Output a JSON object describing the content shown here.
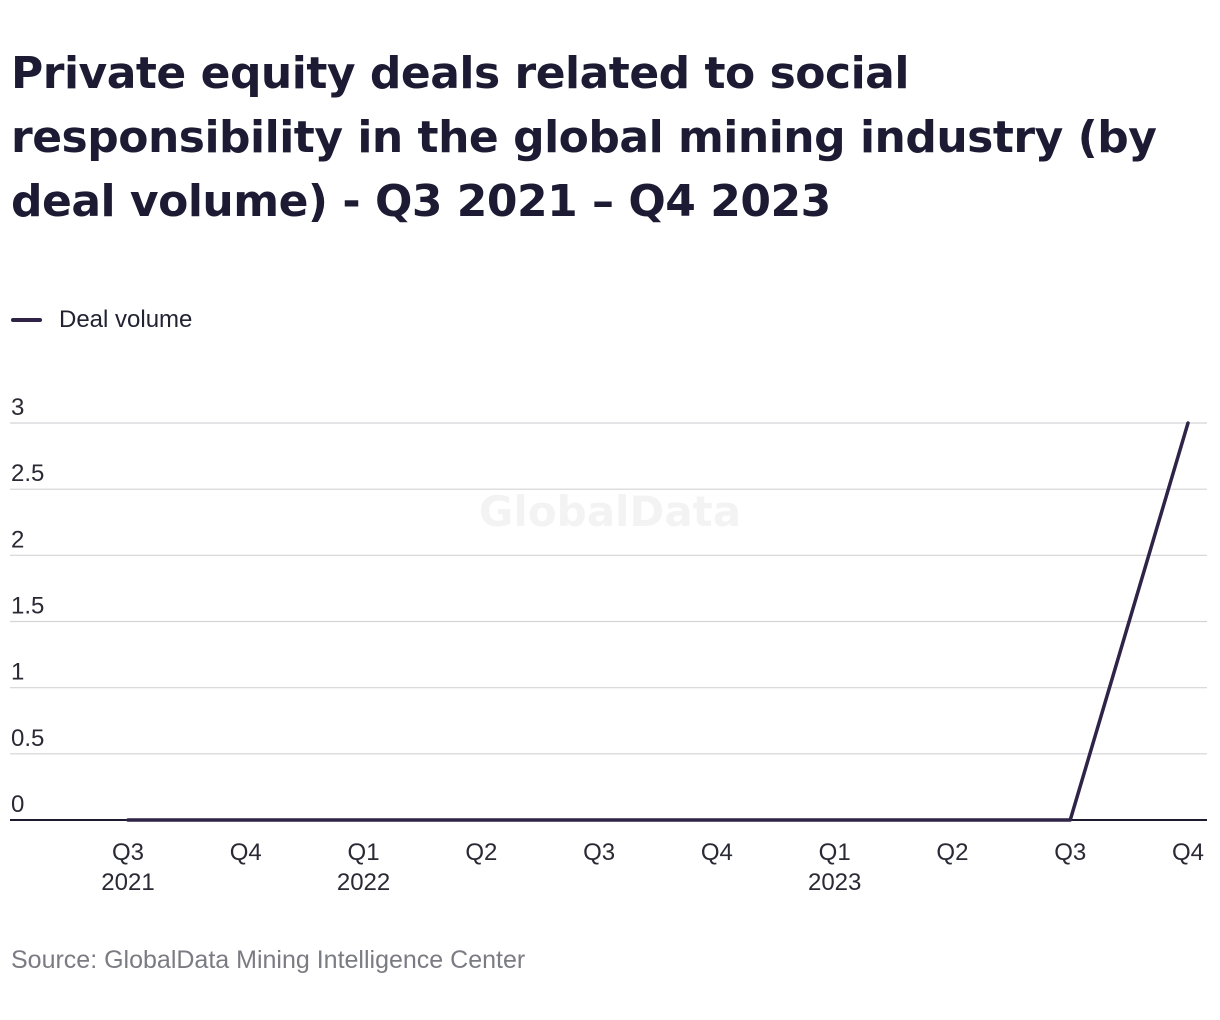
{
  "title": "Private equity deals related to social responsibility in the global mining industry (by deal volume) - Q3 2021 – Q4 2023",
  "legend": {
    "label": "Deal volume"
  },
  "watermark": "GlobalData",
  "source": "Source: GlobalData Mining Intelligence Center",
  "colors": {
    "line": "#2f2447",
    "grid": "#d4d4d8",
    "axis": "#1c1b2e",
    "watermark": "#f3f3f4"
  },
  "chart_data": {
    "type": "line",
    "x": [
      [
        "Q3",
        "2021"
      ],
      [
        "Q4",
        ""
      ],
      [
        "Q1",
        "2022"
      ],
      [
        "Q2",
        ""
      ],
      [
        "Q3",
        ""
      ],
      [
        "Q4",
        ""
      ],
      [
        "Q1",
        "2023"
      ],
      [
        "Q2",
        ""
      ],
      [
        "Q3",
        ""
      ],
      [
        "Q4",
        ""
      ]
    ],
    "series": [
      {
        "name": "Deal volume",
        "values": [
          0,
          0,
          0,
          0,
          0,
          0,
          0,
          0,
          0,
          3
        ]
      }
    ],
    "yticks": [
      "0",
      "0.5",
      "1",
      "1.5",
      "2",
      "2.5",
      "3"
    ],
    "ylim": [
      0,
      3
    ],
    "grid": true,
    "legend": "top-left"
  }
}
